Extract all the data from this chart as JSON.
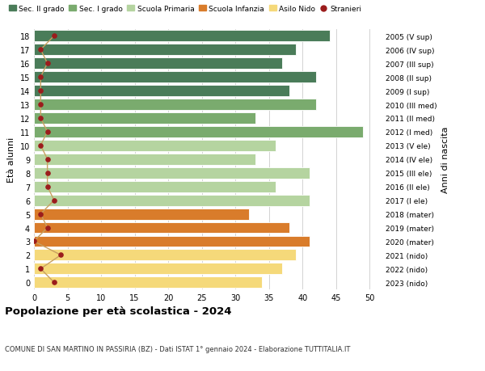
{
  "ages": [
    18,
    17,
    16,
    15,
    14,
    13,
    12,
    11,
    10,
    9,
    8,
    7,
    6,
    5,
    4,
    3,
    2,
    1,
    0
  ],
  "years": [
    "2005 (V sup)",
    "2006 (IV sup)",
    "2007 (III sup)",
    "2008 (II sup)",
    "2009 (I sup)",
    "2010 (III med)",
    "2011 (II med)",
    "2012 (I med)",
    "2013 (V ele)",
    "2014 (IV ele)",
    "2015 (III ele)",
    "2016 (II ele)",
    "2017 (I ele)",
    "2018 (mater)",
    "2019 (mater)",
    "2020 (mater)",
    "2021 (nido)",
    "2022 (nido)",
    "2023 (nido)"
  ],
  "bar_values": [
    44,
    39,
    37,
    42,
    38,
    42,
    33,
    49,
    36,
    33,
    41,
    36,
    41,
    32,
    38,
    41,
    39,
    37,
    34
  ],
  "stranieri": [
    3,
    1,
    2,
    1,
    1,
    1,
    1,
    2,
    1,
    2,
    2,
    2,
    3,
    1,
    2,
    0,
    4,
    1,
    3
  ],
  "bar_colors": [
    "#4a7c59",
    "#4a7c59",
    "#4a7c59",
    "#4a7c59",
    "#4a7c59",
    "#7aab6e",
    "#7aab6e",
    "#7aab6e",
    "#b5d4a0",
    "#b5d4a0",
    "#b5d4a0",
    "#b5d4a0",
    "#b5d4a0",
    "#d97c2b",
    "#d97c2b",
    "#d97c2b",
    "#f5d97a",
    "#f5d97a",
    "#f5d97a"
  ],
  "legend_labels": [
    "Sec. II grado",
    "Sec. I grado",
    "Scuola Primaria",
    "Scuola Infanzia",
    "Asilo Nido",
    "Stranieri"
  ],
  "legend_colors": [
    "#4a7c59",
    "#7aab6e",
    "#b5d4a0",
    "#d97c2b",
    "#f5d97a",
    "#9b1c1c"
  ],
  "title": "Popolazione per età scolastica - 2024",
  "subtitle": "COMUNE DI SAN MARTINO IN PASSIRIA (BZ) - Dati ISTAT 1° gennaio 2024 - Elaborazione TUTTITALIA.IT",
  "ylabel": "Età alunni",
  "right_ylabel": "Anni di nascita",
  "xlim": [
    0,
    52
  ],
  "xticks": [
    0,
    5,
    10,
    15,
    20,
    25,
    30,
    35,
    40,
    45,
    50
  ],
  "stranieri_color": "#9b1c1c",
  "stranieri_line_color": "#c8a060",
  "bg_color": "#ffffff",
  "grid_color": "#cccccc"
}
